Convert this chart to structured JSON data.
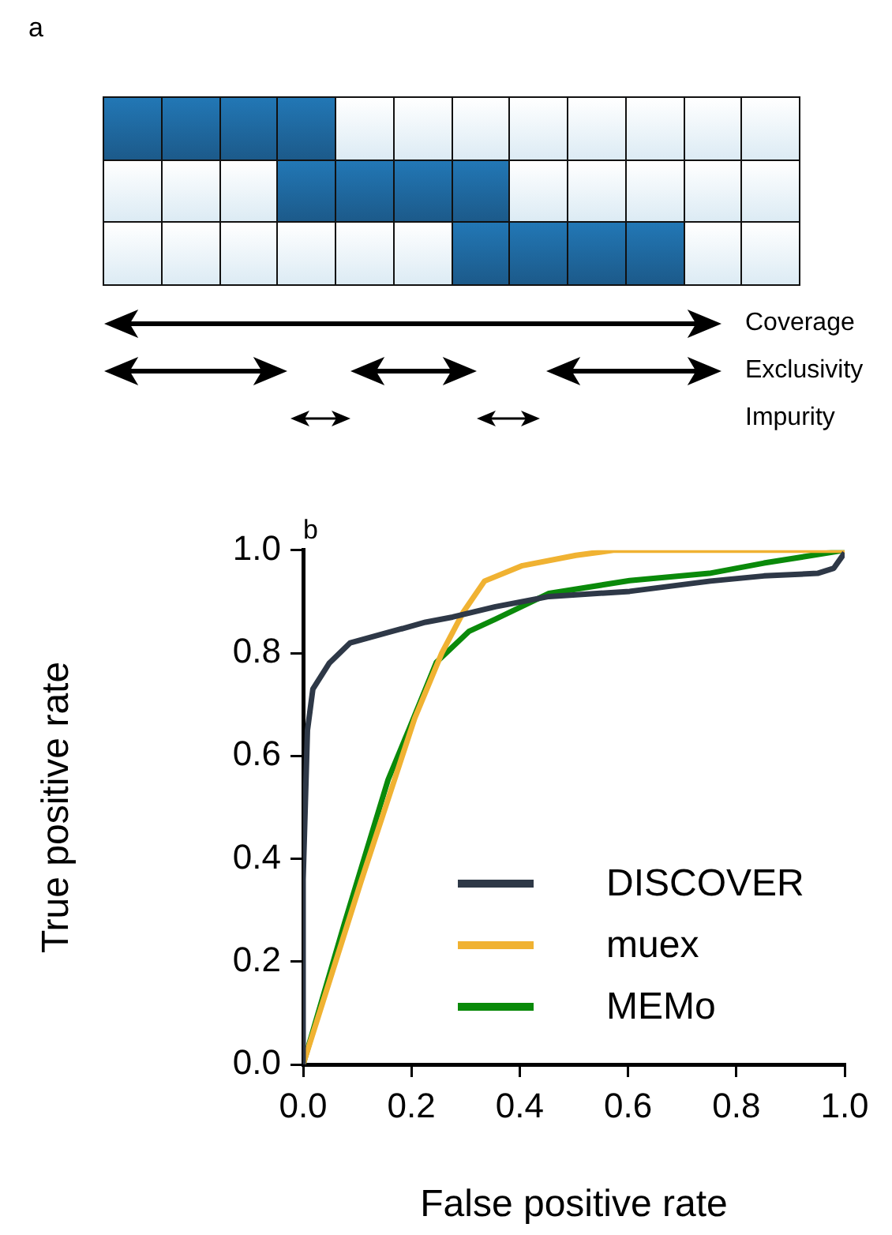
{
  "chart_data": [
    {
      "type": "other",
      "title": "a",
      "annotations": [
        "Coverage",
        "Exclusivity",
        "Impurity"
      ]
    },
    {
      "type": "line",
      "title": "b",
      "xlabel": "False positive rate",
      "ylabel": "True positive rate",
      "xlim": [
        0,
        1
      ],
      "ylim": [
        0,
        1
      ],
      "xticks": [
        {
          "value": 0,
          "label": "0.0"
        },
        0.2,
        0.4,
        0.6,
        0.8,
        {
          "value": 1,
          "label": "1.0"
        }
      ],
      "yticks": [
        {
          "value": 0,
          "label": "0.0"
        },
        0.2,
        0.4,
        0.6,
        0.8,
        {
          "value": 1,
          "label": "1.0"
        }
      ],
      "grid": false,
      "legend": "bottom right",
      "marker": "none",
      "line_style": "solid",
      "series": [
        {
          "name": "DISCOVER",
          "color": "#2e3847",
          "x": [
            0,
            0,
            0.008,
            0.018,
            0.048,
            0.087,
            0.157,
            0.226,
            0.276,
            0.355,
            0.454,
            0.603,
            0.752,
            0.851,
            0.95,
            0.98,
            1
          ],
          "values": [
            0,
            0.36,
            0.65,
            0.73,
            0.78,
            0.82,
            0.84,
            0.86,
            0.87,
            0.89,
            0.91,
            0.92,
            0.94,
            0.95,
            0.955,
            0.965,
            0.995
          ]
        },
        {
          "name": "muex",
          "color": "#f0b232",
          "x": [
            0,
            0.107,
            0.206,
            0.256,
            0.296,
            0.335,
            0.405,
            0.504,
            0.573,
            1
          ],
          "values": [
            0,
            0.356,
            0.673,
            0.8,
            0.88,
            0.94,
            0.97,
            0.99,
            1,
            1
          ]
        },
        {
          "name": "MEMo",
          "color": "#0a8a0a",
          "x": [
            0,
            0.077,
            0.157,
            0.196,
            0.246,
            0.306,
            0.355,
            0.454,
            0.603,
            0.75,
            0.851,
            1
          ],
          "values": [
            0,
            0.277,
            0.554,
            0.653,
            0.782,
            0.842,
            0.866,
            0.916,
            0.941,
            0.955,
            0.975,
            1
          ]
        }
      ]
    }
  ]
}
